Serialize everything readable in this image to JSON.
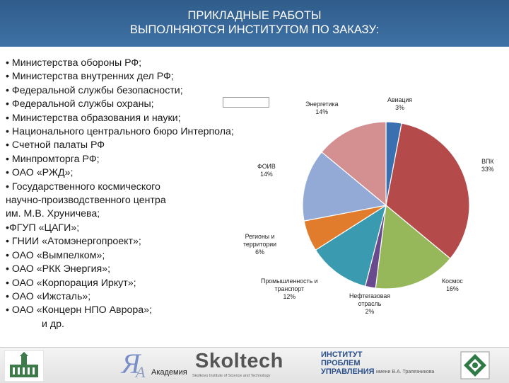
{
  "slide": {
    "title_line1": "ПРИКЛАДНЫЕ РАБОТЫ",
    "title_line2": "ВЫПОЛНЯЮТСЯ ИНСТИТУТОМ ПО ЗАКАЗУ:",
    "list": [
      "• Министерства обороны РФ;",
      "• Министерства внутренних дел РФ;",
      "• Федеральной службы безопасности;",
      "• Федеральной службы охраны;",
      "• Министерства образования и науки;",
      "• Национального центрального бюро Интерпола;",
      "• Счетной палаты РФ",
      "• Минпромторга РФ;",
      "• ОАО «РЖД»;",
      "• Государственного космического",
      "научно-производственного центра",
      "им. М.В. Хруничева;",
      "•ФГУП «ЦАГИ»;",
      "• ГНИИ «Атомэнергопроект»;",
      "• ОАО «Вымпелком»;",
      "• ОАО «РКК Энергия»;",
      "• ОАО «Корпорация Иркут»;",
      "• ОАО «Ижсталь»;",
      "• ОАО «Концерн НПО Аврора»;",
      "и др."
    ]
  },
  "chart_data": {
    "type": "pie",
    "title": "",
    "slices": [
      {
        "label": "Авиация",
        "value": 3,
        "pct": "3%",
        "color": "#3a6fb0"
      },
      {
        "label": "ВПК",
        "value": 33,
        "pct": "33%",
        "color": "#b54a4a"
      },
      {
        "label": "Космос",
        "value": 16,
        "pct": "16%",
        "color": "#97b85a"
      },
      {
        "label": "Нефтегазовая отрасль",
        "value": 2,
        "pct": "2%",
        "color": "#6a4a8e"
      },
      {
        "label": "Промышленность и транспорт",
        "value": 12,
        "pct": "12%",
        "color": "#3a9bb0"
      },
      {
        "label": "Регионы и территории",
        "value": 6,
        "pct": "6%",
        "color": "#e07c2c"
      },
      {
        "label": "ФОИВ",
        "value": 14,
        "pct": "14%",
        "color": "#93aad6"
      },
      {
        "label": "Энергетика",
        "value": 14,
        "pct": "14%",
        "color": "#d49090"
      }
    ],
    "labels_text": {
      "aviation": [
        "Авиация",
        "3%"
      ],
      "vpk": [
        "ВПК",
        "33%"
      ],
      "kosmos": [
        "Космос",
        "16%"
      ],
      "neft": [
        "Нефтегазовая",
        "отрасль",
        "2%"
      ],
      "prom": [
        "Промышленность и",
        "транспорт",
        "12%"
      ],
      "region": [
        "Регионы и",
        "территории",
        "6%"
      ],
      "foiv": [
        "ФОИВ",
        "14%"
      ],
      "energ": [
        "Энергетика",
        "14%"
      ]
    }
  },
  "footer": {
    "akademia": "Академия",
    "skoltech": "Skoltech",
    "skoltech_sub": "Skolkovo Institute of Science and Technology",
    "ipu_line1": "ИНСТИТУТ",
    "ipu_line2": "ПРОБЛЕМ",
    "ipu_line3": "УПРАВЛЕНИЯ",
    "ipu_name": "имени В.А. Трапезникова"
  },
  "colors": {
    "header": "#3a6a9c"
  }
}
